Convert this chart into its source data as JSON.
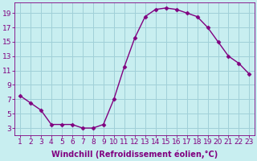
{
  "hours": [
    1,
    2,
    3,
    4,
    5,
    6,
    7,
    8,
    9,
    10,
    11,
    12,
    13,
    14,
    15,
    16,
    17,
    18,
    19,
    20,
    21,
    22,
    23
  ],
  "values": [
    7.5,
    6.5,
    5.5,
    3.5,
    3.5,
    3.5,
    3.0,
    3.0,
    3.5,
    7.0,
    11.5,
    15.5,
    18.5,
    19.5,
    19.7,
    19.5,
    19.0,
    18.5,
    17.0,
    15.0,
    13.0,
    12.0,
    10.5
  ],
  "line_color": "#800080",
  "marker": "D",
  "marker_size": 2.5,
  "background_color": "#c8eef0",
  "grid_color": "#a0d0d8",
  "xlabel": "Windchill (Refroidissement éolien,°C)",
  "ylim": [
    2,
    20.5
  ],
  "xlim": [
    0.5,
    23.5
  ],
  "yticks": [
    3,
    5,
    7,
    9,
    11,
    13,
    15,
    17,
    19
  ],
  "xticks": [
    1,
    2,
    3,
    4,
    5,
    6,
    7,
    8,
    9,
    10,
    11,
    12,
    13,
    14,
    15,
    16,
    17,
    18,
    19,
    20,
    21,
    22,
    23
  ],
  "xlabel_fontsize": 7,
  "tick_fontsize": 6.5,
  "line_width": 1.0
}
